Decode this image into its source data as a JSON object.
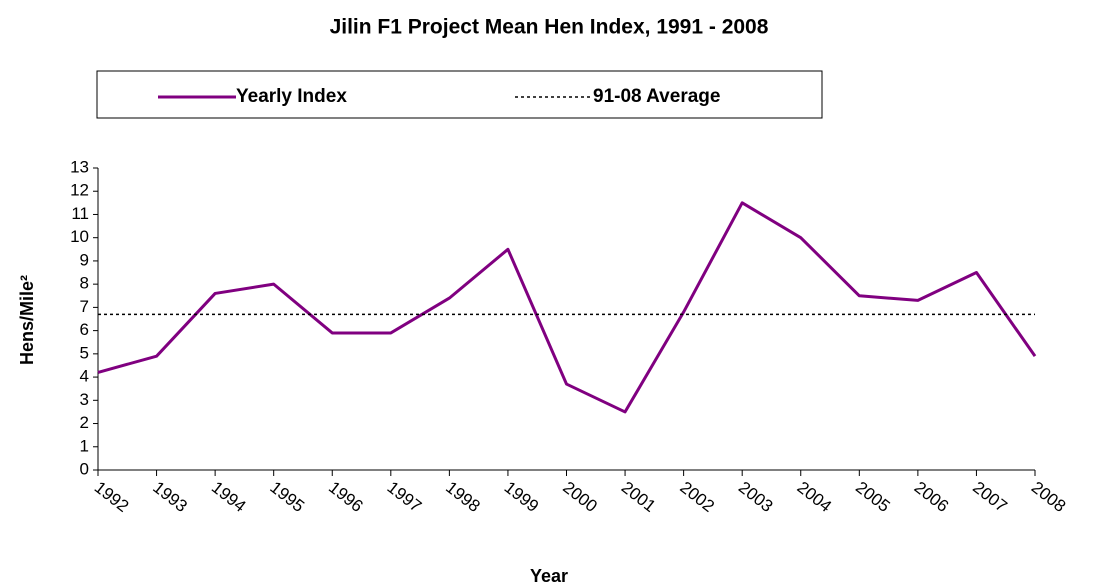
{
  "chart_data": {
    "type": "line",
    "title": "Jilin F1 Project Mean Hen Index, 1991 - 2008",
    "xlabel": "Year",
    "ylabel": "Hens/Mile²",
    "categories": [
      "1992",
      "1993",
      "1994",
      "1995",
      "1996",
      "1997",
      "1998",
      "1999",
      "2000",
      "2001",
      "2002",
      "2003",
      "2004",
      "2005",
      "2006",
      "2007",
      "2008"
    ],
    "series": [
      {
        "name": "Yearly Index",
        "color": "#800080",
        "style": "solid",
        "values": [
          4.2,
          4.9,
          7.6,
          8.0,
          5.9,
          5.9,
          7.4,
          9.5,
          3.7,
          2.5,
          6.8,
          11.5,
          10.0,
          7.5,
          7.3,
          8.5,
          4.9
        ]
      },
      {
        "name": "91-08 Average",
        "color": "#000000",
        "style": "dotted",
        "values": [
          6.7,
          6.7,
          6.7,
          6.7,
          6.7,
          6.7,
          6.7,
          6.7,
          6.7,
          6.7,
          6.7,
          6.7,
          6.7,
          6.7,
          6.7,
          6.7,
          6.7
        ]
      }
    ],
    "ylim": [
      0,
      13
    ],
    "yticks": [
      0,
      1,
      2,
      3,
      4,
      5,
      6,
      7,
      8,
      9,
      10,
      11,
      12,
      13
    ],
    "legend": "top"
  }
}
